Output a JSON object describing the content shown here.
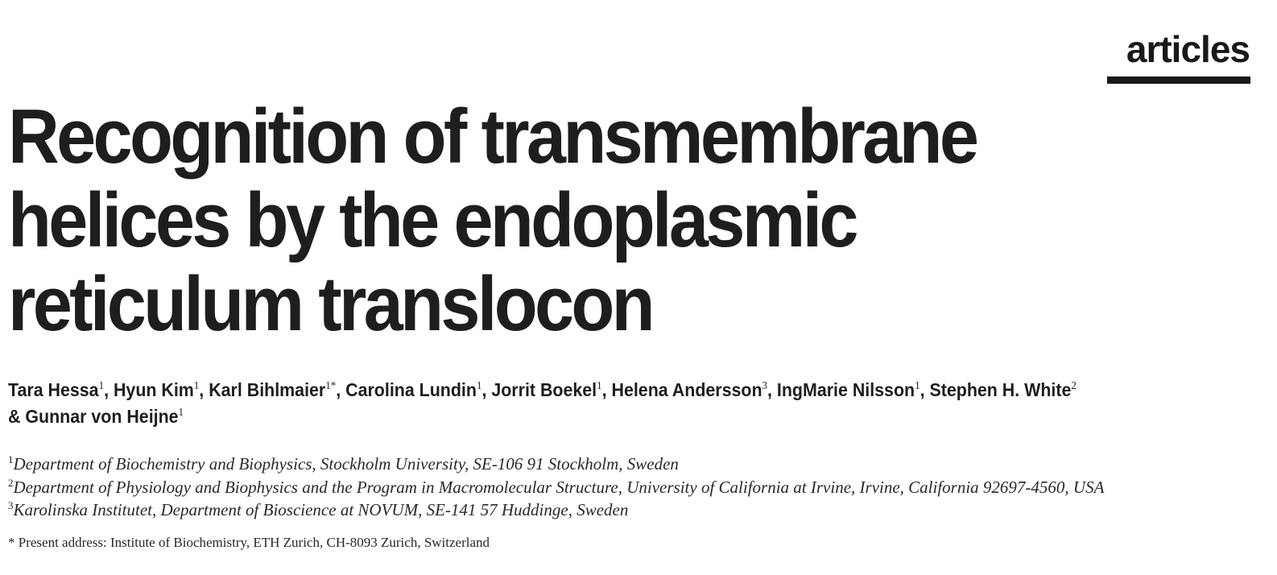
{
  "header": {
    "section": "articles"
  },
  "title": {
    "lines": [
      "Recognition of transmembrane",
      "helices by the endoplasmic",
      "reticulum translocon"
    ]
  },
  "authors": [
    {
      "name": "Tara Hessa",
      "sup": "1",
      "sep": ", "
    },
    {
      "name": "Hyun Kim",
      "sup": "1",
      "sep": ", "
    },
    {
      "name": "Karl Bihlmaier",
      "sup": "1*",
      "sep": ", "
    },
    {
      "name": "Carolina Lundin",
      "sup": "1",
      "sep": ", "
    },
    {
      "name": "Jorrit Boekel",
      "sup": "1",
      "sep": ", "
    },
    {
      "name": "Helena Andersson",
      "sup": "3",
      "sep": ", "
    },
    {
      "name": "IngMarie Nilsson",
      "sup": "1",
      "sep": ", "
    },
    {
      "name": "Stephen H. White",
      "sup": "2",
      "sep": ""
    },
    {
      "name": "& Gunnar von Heijne",
      "sup": "1",
      "sep": ""
    }
  ],
  "affiliations": [
    {
      "sup": "1",
      "text": "Department of Biochemistry and Biophysics, Stockholm University, SE-106 91 Stockholm, Sweden"
    },
    {
      "sup": "2",
      "text": "Department of Physiology and Biophysics and the Program in Macromolecular Structure, University of California at Irvine, Irvine, California 92697-4560, USA"
    },
    {
      "sup": "3",
      "text": "Karolinska Institutet, Department of Bioscience at NOVUM, SE-141 57 Huddinge, Sweden"
    }
  ],
  "present_address": "* Present address: Institute of Biochemistry, ETH Zurich, CH-8093 Zurich, Switzerland"
}
